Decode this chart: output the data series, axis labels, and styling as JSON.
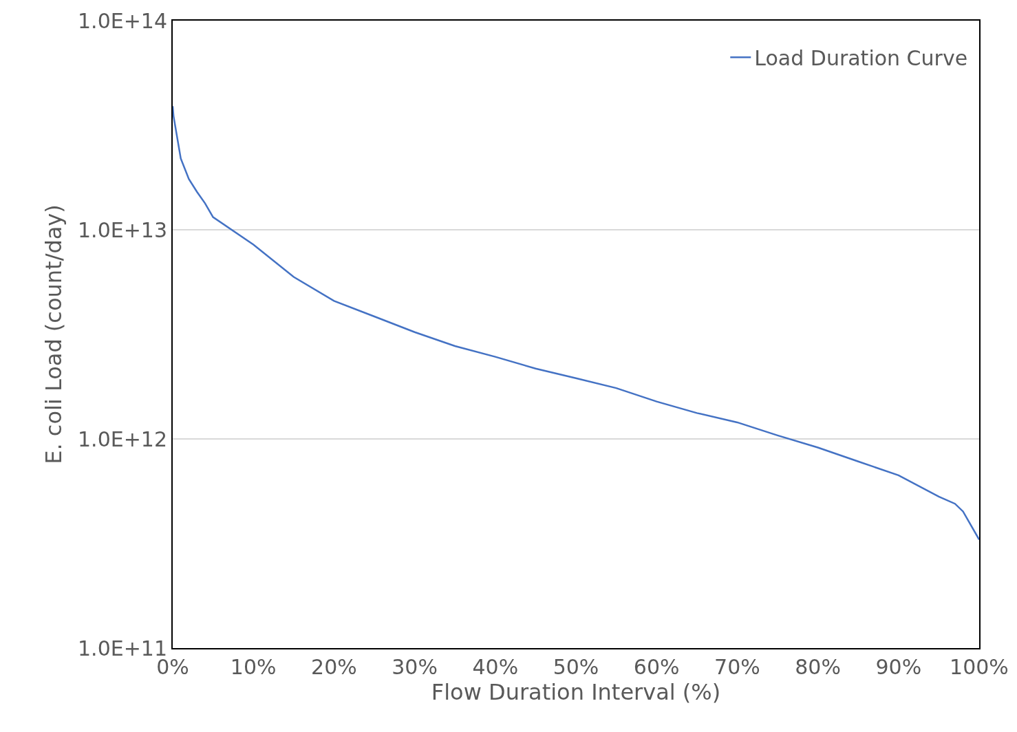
{
  "chart_data": {
    "type": "line",
    "xlabel": "Flow Duration Interval (%)",
    "ylabel": "E. coli Load (count/day)",
    "series": [
      {
        "name": "Load Duration Curve",
        "color": "#4472c4",
        "x": [
          0,
          0.1,
          1,
          2,
          3,
          4,
          5,
          10,
          15,
          20,
          25,
          30,
          35,
          40,
          45,
          50,
          55,
          60,
          65,
          70,
          75,
          80,
          85,
          90,
          95,
          97,
          98,
          100
        ],
        "values": [
          39000000000000.0,
          35000000000000.0,
          21900000000000.0,
          17500000000000.0,
          15200000000000.0,
          13400000000000.0,
          11500000000000.0,
          8500000000000.0,
          5950000000000.0,
          4570000000000.0,
          3850000000000.0,
          3240000000000.0,
          2780000000000.0,
          2470000000000.0,
          2170000000000.0,
          1950000000000.0,
          1750000000000.0,
          1510000000000.0,
          1330000000000.0,
          1200000000000.0,
          1040000000000.0,
          910000000000.0,
          780000000000.0,
          670000000000.0,
          530000000000.0,
          490000000000.0,
          450000000000.0,
          330000000000.0
        ]
      }
    ],
    "log": "y",
    "xlim": [
      0,
      100
    ],
    "ylim": [
      100000000000.0,
      100000000000000.0
    ],
    "xticks": [
      {
        "value": 0,
        "label": "0%"
      },
      {
        "value": 10,
        "label": "10%"
      },
      {
        "value": 20,
        "label": "20%"
      },
      {
        "value": 30,
        "label": "30%"
      },
      {
        "value": 40,
        "label": "40%"
      },
      {
        "value": 50,
        "label": "50%"
      },
      {
        "value": 60,
        "label": "60%"
      },
      {
        "value": 70,
        "label": "70%"
      },
      {
        "value": 80,
        "label": "80%"
      },
      {
        "value": 90,
        "label": "90%"
      },
      {
        "value": 100,
        "label": "100%"
      }
    ],
    "yticks": [
      {
        "value": 100000000000.0,
        "label": "1.0E+11"
      },
      {
        "value": 1000000000000.0,
        "label": "1.0E+12"
      },
      {
        "value": 10000000000000.0,
        "label": "1.0E+13"
      },
      {
        "value": 100000000000000.0,
        "label": "1.0E+14"
      }
    ],
    "grid": "y",
    "legend": "top right",
    "marker": "none",
    "line_style": "solid"
  }
}
